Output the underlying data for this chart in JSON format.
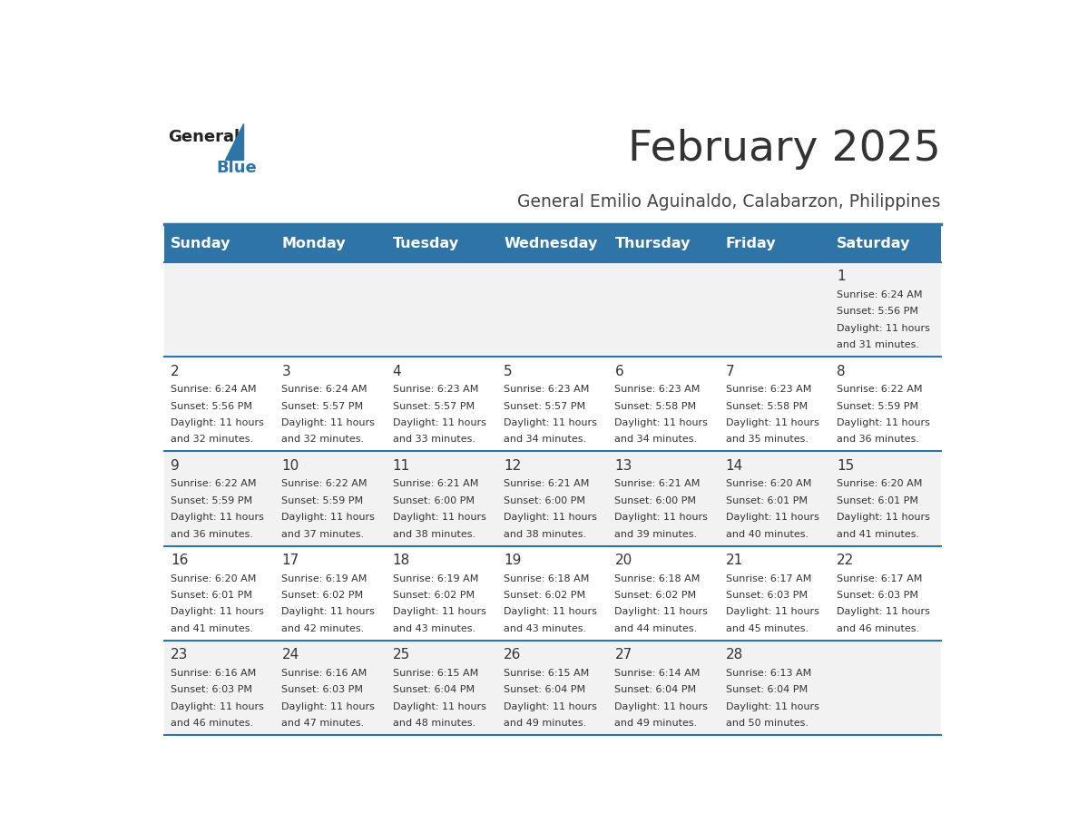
{
  "title": "February 2025",
  "subtitle": "General Emilio Aguinaldo, Calabarzon, Philippines",
  "days_of_week": [
    "Sunday",
    "Monday",
    "Tuesday",
    "Wednesday",
    "Thursday",
    "Friday",
    "Saturday"
  ],
  "header_bg": "#2E74A6",
  "header_text_color": "#FFFFFF",
  "row_bg_odd": "#F2F2F2",
  "row_bg_even": "#FFFFFF",
  "separator_color": "#2E74A6",
  "day_number_color": "#333333",
  "info_text_color": "#333333",
  "title_color": "#333333",
  "subtitle_color": "#444444",
  "logo_general_color": "#222222",
  "logo_blue_color": "#2E74A6",
  "calendar_data": [
    [
      null,
      null,
      null,
      null,
      null,
      null,
      {
        "day": 1,
        "sunrise": "6:24 AM",
        "sunset": "5:56 PM",
        "daylight_suffix": "31 minutes."
      }
    ],
    [
      {
        "day": 2,
        "sunrise": "6:24 AM",
        "sunset": "5:56 PM",
        "daylight_suffix": "32 minutes."
      },
      {
        "day": 3,
        "sunrise": "6:24 AM",
        "sunset": "5:57 PM",
        "daylight_suffix": "32 minutes."
      },
      {
        "day": 4,
        "sunrise": "6:23 AM",
        "sunset": "5:57 PM",
        "daylight_suffix": "33 minutes."
      },
      {
        "day": 5,
        "sunrise": "6:23 AM",
        "sunset": "5:57 PM",
        "daylight_suffix": "34 minutes."
      },
      {
        "day": 6,
        "sunrise": "6:23 AM",
        "sunset": "5:58 PM",
        "daylight_suffix": "34 minutes."
      },
      {
        "day": 7,
        "sunrise": "6:23 AM",
        "sunset": "5:58 PM",
        "daylight_suffix": "35 minutes."
      },
      {
        "day": 8,
        "sunrise": "6:22 AM",
        "sunset": "5:59 PM",
        "daylight_suffix": "36 minutes."
      }
    ],
    [
      {
        "day": 9,
        "sunrise": "6:22 AM",
        "sunset": "5:59 PM",
        "daylight_suffix": "36 minutes."
      },
      {
        "day": 10,
        "sunrise": "6:22 AM",
        "sunset": "5:59 PM",
        "daylight_suffix": "37 minutes."
      },
      {
        "day": 11,
        "sunrise": "6:21 AM",
        "sunset": "6:00 PM",
        "daylight_suffix": "38 minutes."
      },
      {
        "day": 12,
        "sunrise": "6:21 AM",
        "sunset": "6:00 PM",
        "daylight_suffix": "38 minutes."
      },
      {
        "day": 13,
        "sunrise": "6:21 AM",
        "sunset": "6:00 PM",
        "daylight_suffix": "39 minutes."
      },
      {
        "day": 14,
        "sunrise": "6:20 AM",
        "sunset": "6:01 PM",
        "daylight_suffix": "40 minutes."
      },
      {
        "day": 15,
        "sunrise": "6:20 AM",
        "sunset": "6:01 PM",
        "daylight_suffix": "41 minutes."
      }
    ],
    [
      {
        "day": 16,
        "sunrise": "6:20 AM",
        "sunset": "6:01 PM",
        "daylight_suffix": "41 minutes."
      },
      {
        "day": 17,
        "sunrise": "6:19 AM",
        "sunset": "6:02 PM",
        "daylight_suffix": "42 minutes."
      },
      {
        "day": 18,
        "sunrise": "6:19 AM",
        "sunset": "6:02 PM",
        "daylight_suffix": "43 minutes."
      },
      {
        "day": 19,
        "sunrise": "6:18 AM",
        "sunset": "6:02 PM",
        "daylight_suffix": "43 minutes."
      },
      {
        "day": 20,
        "sunrise": "6:18 AM",
        "sunset": "6:02 PM",
        "daylight_suffix": "44 minutes."
      },
      {
        "day": 21,
        "sunrise": "6:17 AM",
        "sunset": "6:03 PM",
        "daylight_suffix": "45 minutes."
      },
      {
        "day": 22,
        "sunrise": "6:17 AM",
        "sunset": "6:03 PM",
        "daylight_suffix": "46 minutes."
      }
    ],
    [
      {
        "day": 23,
        "sunrise": "6:16 AM",
        "sunset": "6:03 PM",
        "daylight_suffix": "46 minutes."
      },
      {
        "day": 24,
        "sunrise": "6:16 AM",
        "sunset": "6:03 PM",
        "daylight_suffix": "47 minutes."
      },
      {
        "day": 25,
        "sunrise": "6:15 AM",
        "sunset": "6:04 PM",
        "daylight_suffix": "48 minutes."
      },
      {
        "day": 26,
        "sunrise": "6:15 AM",
        "sunset": "6:04 PM",
        "daylight_suffix": "49 minutes."
      },
      {
        "day": 27,
        "sunrise": "6:14 AM",
        "sunset": "6:04 PM",
        "daylight_suffix": "49 minutes."
      },
      {
        "day": 28,
        "sunrise": "6:13 AM",
        "sunset": "6:04 PM",
        "daylight_suffix": "50 minutes."
      },
      null
    ]
  ]
}
